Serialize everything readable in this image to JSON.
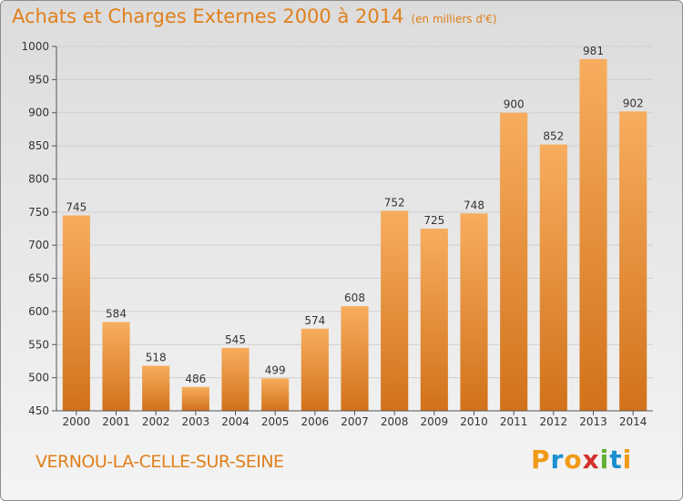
{
  "header": {
    "title": "Achats et Charges Externes 2000 à 2014",
    "unit": "(en milliers d'€)"
  },
  "footer": {
    "commune": "VERNOU-LA-CELLE-SUR-SEINE",
    "logo": [
      "P",
      "r",
      "o",
      "x",
      "i",
      "t",
      "i"
    ],
    "logo_colors": [
      "#f09a16",
      "#1a8fd0",
      "#f09a16",
      "#d2302a",
      "#62b030",
      "#1a8fd0",
      "#f09a16"
    ]
  },
  "colors": {
    "bar_light": "#f7ad5e",
    "bar_dark": "#d2721a",
    "grid": "#cfcfcf",
    "axis": "#555555",
    "text": "#333333",
    "accent": "#e0801b"
  },
  "chart_data": {
    "type": "bar",
    "title": "Achats et Charges Externes 2000 à 2014",
    "subtitle": "(en milliers d'€)",
    "categories": [
      "2000",
      "2001",
      "2002",
      "2003",
      "2004",
      "2005",
      "2006",
      "2007",
      "2008",
      "2009",
      "2010",
      "2011",
      "2012",
      "2013",
      "2014"
    ],
    "values": [
      745,
      584,
      518,
      486,
      545,
      499,
      574,
      608,
      752,
      725,
      748,
      900,
      852,
      981,
      902
    ],
    "ylim": [
      450,
      1000
    ],
    "yticks": [
      450,
      500,
      550,
      600,
      650,
      700,
      750,
      800,
      850,
      900,
      950,
      1000
    ],
    "xlabel": "",
    "ylabel": "",
    "grid": true
  }
}
